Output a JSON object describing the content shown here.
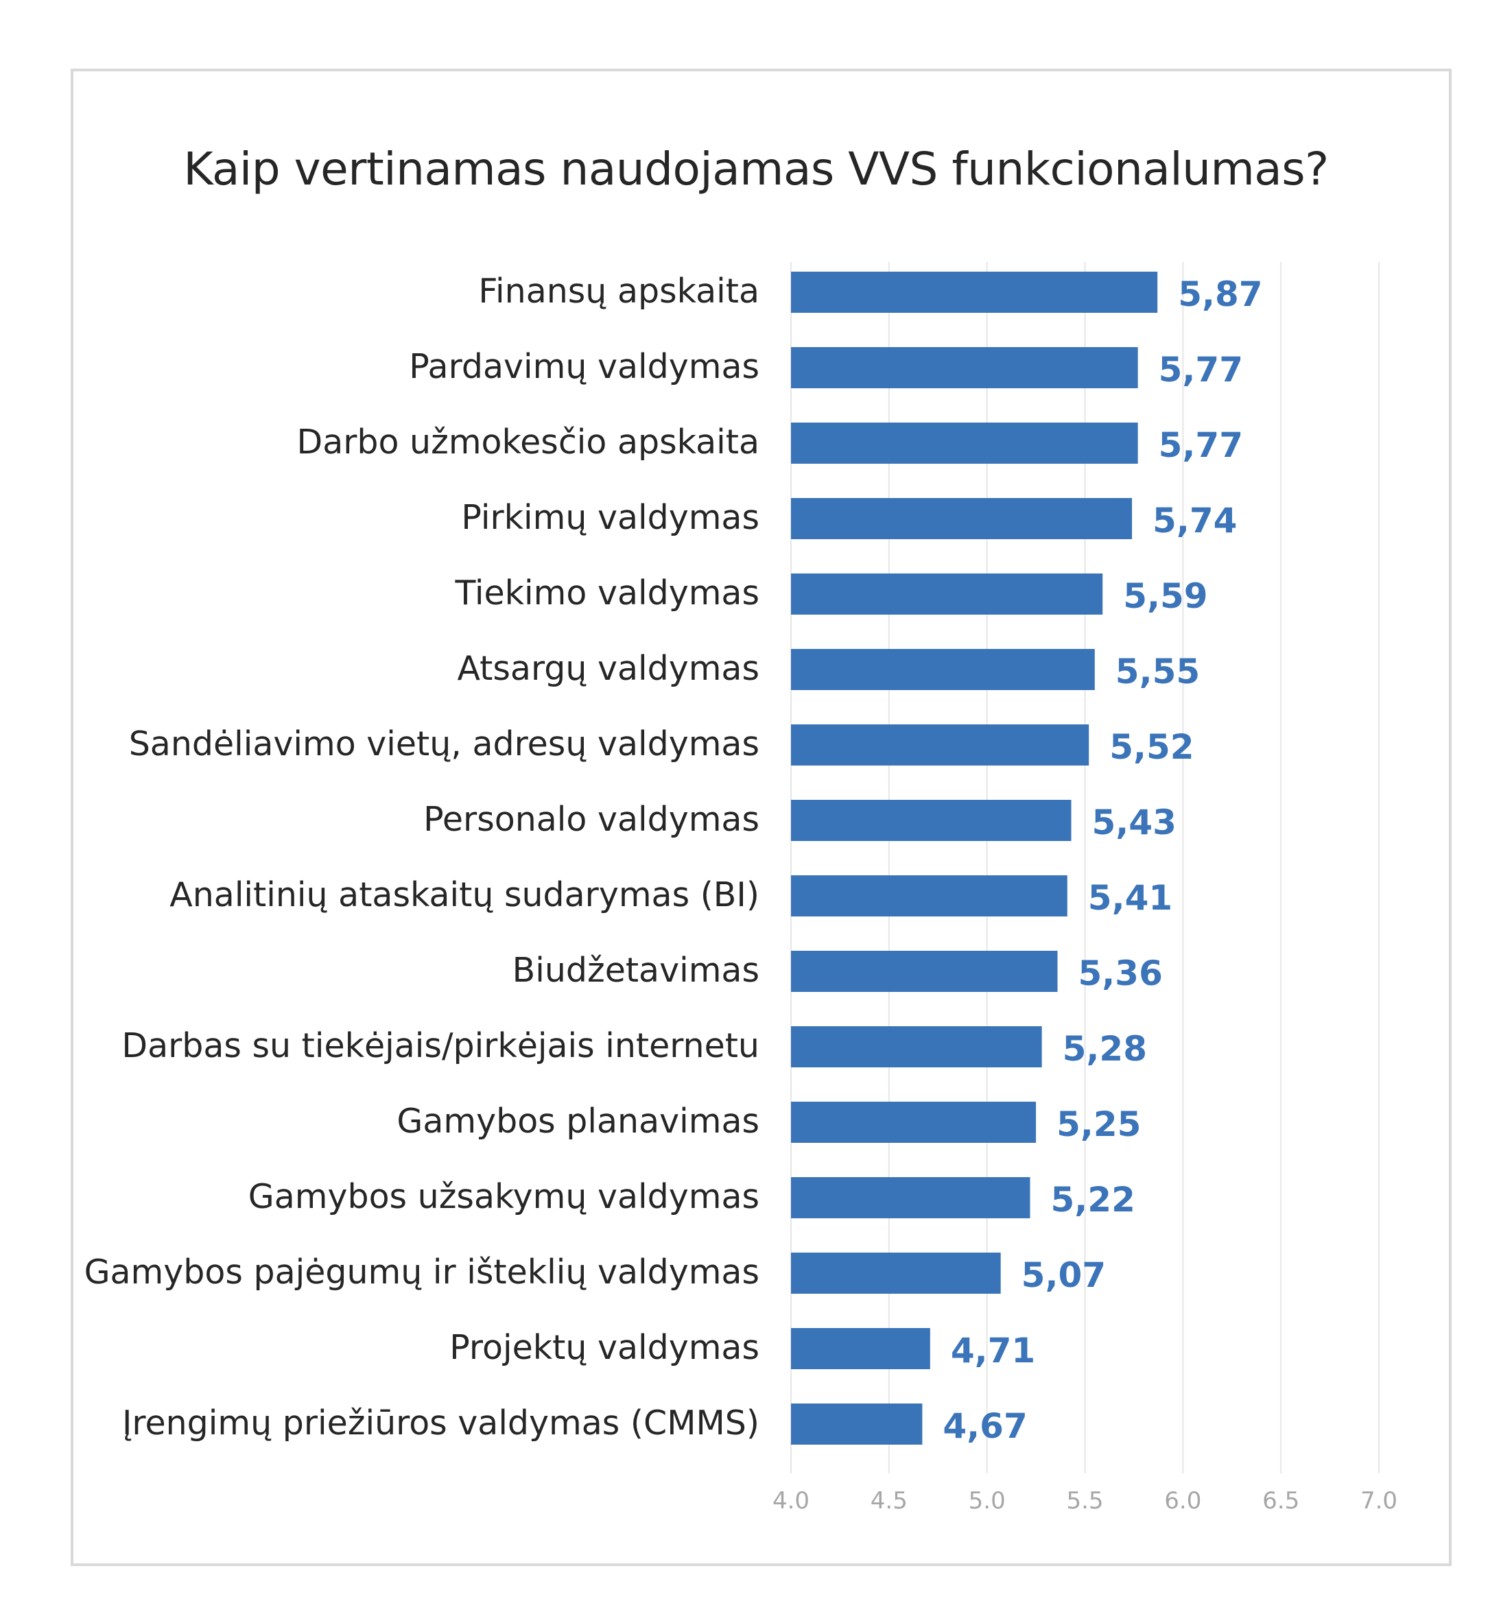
{
  "chart_data": {
    "type": "bar",
    "orientation": "horizontal",
    "title": "Kaip vertinamas naudojamas VVS funkcionalumas?",
    "xlabel": "",
    "ylabel": "",
    "xlim": [
      4.0,
      7.0
    ],
    "ticks": [
      "4.0",
      "4.5",
      "5.0",
      "5.5",
      "6.0",
      "6.5",
      "7.0"
    ],
    "tick_values": [
      4.0,
      4.5,
      5.0,
      5.5,
      6.0,
      6.5,
      7.0
    ],
    "grid": "vertical",
    "bar_color": "#3a74b8",
    "label_color": "#3b74b9",
    "categories": [
      "Finansų apskaita",
      "Pardavimų valdymas",
      "Darbo užmokesčio apskaita",
      "Pirkimų valdymas",
      "Tiekimo valdymas",
      "Atsargų valdymas",
      "Sandėliavimo vietų, adresų valdymas",
      "Personalo valdymas",
      "Analitinių ataskaitų sudarymas (BI)",
      "Biudžetavimas",
      "Darbas su tiekėjais/pirkėjais internetu",
      "Gamybos planavimas",
      "Gamybos užsakymų valdymas",
      "Gamybos pajėgumų ir išteklių valdymas",
      "Projektų valdymas",
      "Įrengimų priežiūros valdymas (CMMS)"
    ],
    "values": [
      5.87,
      5.77,
      5.77,
      5.74,
      5.59,
      5.55,
      5.52,
      5.43,
      5.41,
      5.36,
      5.28,
      5.25,
      5.22,
      5.07,
      4.71,
      4.67
    ],
    "value_labels": [
      "5,87",
      "5,77",
      "5,77",
      "5,74",
      "5,59",
      "5,55",
      "5,52",
      "5,43",
      "5,41",
      "5,36",
      "5,28",
      "5,25",
      "5,22",
      "5,07",
      "4,71",
      "4,67"
    ]
  }
}
